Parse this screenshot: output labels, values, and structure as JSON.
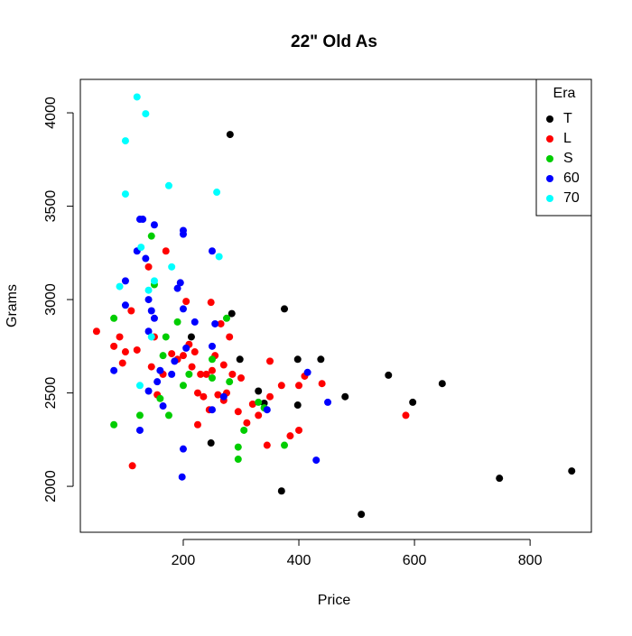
{
  "chart_data": {
    "type": "scatter",
    "title": "22\" Old As",
    "x_label": "Price",
    "y_label": "Grams",
    "xlim": [
      22,
      906
    ],
    "ylim": [
      1754,
      4179
    ],
    "xticks": [
      200,
      400,
      600,
      800
    ],
    "yticks": [
      2000,
      2500,
      3000,
      3500,
      4000
    ],
    "legend_title": "Era",
    "legend_position": "top-right",
    "series": [
      {
        "name": "T",
        "color": "#000000",
        "x": [
          281,
          375,
          284,
          214,
          298,
          398,
          438,
          330,
          398,
          480,
          555,
          597,
          648,
          248,
          370,
          508,
          747,
          872,
          340
        ],
        "y": [
          3884,
          2950,
          2925,
          2800,
          2680,
          2680,
          2680,
          2510,
          2435,
          2480,
          2595,
          2450,
          2550,
          2232,
          1975,
          1850,
          2043,
          2082,
          2445
        ]
      },
      {
        "name": "L",
        "color": "#ff0000",
        "x": [
          50,
          80,
          90,
          95,
          100,
          110,
          120,
          140,
          112,
          145,
          150,
          155,
          165,
          170,
          180,
          190,
          200,
          205,
          210,
          215,
          220,
          225,
          230,
          235,
          240,
          245,
          248,
          250,
          255,
          260,
          265,
          270,
          275,
          280,
          285,
          295,
          300,
          310,
          320,
          330,
          345,
          350,
          350,
          370,
          385,
          400,
          400,
          410,
          440,
          585,
          225,
          270
        ],
        "y": [
          2830,
          2750,
          2800,
          2660,
          2720,
          2940,
          2730,
          3175,
          2110,
          2640,
          2800,
          2490,
          2600,
          3260,
          2710,
          2680,
          2700,
          2990,
          2760,
          2640,
          2720,
          2500,
          2600,
          2480,
          2600,
          2410,
          2985,
          2620,
          2700,
          2490,
          2870,
          2650,
          2500,
          2800,
          2600,
          2400,
          2580,
          2340,
          2440,
          2380,
          2220,
          2480,
          2670,
          2540,
          2270,
          2300,
          2540,
          2590,
          2550,
          2380,
          2330,
          2460
        ]
      },
      {
        "name": "S",
        "color": "#00cd00",
        "x": [
          80,
          80,
          125,
          145,
          150,
          165,
          170,
          175,
          190,
          200,
          210,
          250,
          250,
          275,
          280,
          295,
          295,
          305,
          330,
          340,
          375,
          160
        ],
        "y": [
          2900,
          2330,
          2380,
          3340,
          3080,
          2700,
          2800,
          2380,
          2880,
          2540,
          2600,
          2680,
          2580,
          2900,
          2560,
          2210,
          2145,
          2300,
          2450,
          2420,
          2220,
          2470
        ]
      },
      {
        "name": "60",
        "color": "#0000ff",
        "x": [
          80,
          100,
          100,
          120,
          125,
          130,
          125,
          135,
          140,
          140,
          145,
          150,
          150,
          155,
          160,
          165,
          180,
          185,
          190,
          195,
          200,
          200,
          200,
          200,
          198,
          205,
          220,
          250,
          250,
          250,
          255,
          270,
          345,
          415,
          430,
          450,
          140
        ],
        "y": [
          2620,
          2970,
          3100,
          3260,
          3430,
          3430,
          2300,
          3220,
          3000,
          2830,
          2940,
          2900,
          3400,
          2560,
          2620,
          2430,
          2600,
          2670,
          3060,
          3090,
          3370,
          3350,
          2950,
          2200,
          2050,
          2740,
          2880,
          3260,
          2750,
          2410,
          2870,
          2480,
          2410,
          2610,
          2140,
          2450,
          2510
        ]
      },
      {
        "name": "70",
        "color": "#00ffff",
        "x": [
          120,
          135,
          100,
          100,
          175,
          258,
          127,
          262,
          90,
          180,
          150,
          140,
          145,
          125
        ],
        "y": [
          4085,
          3995,
          3850,
          3565,
          3610,
          3575,
          3280,
          3230,
          3070,
          3175,
          3100,
          3050,
          2800,
          2540
        ]
      }
    ]
  }
}
